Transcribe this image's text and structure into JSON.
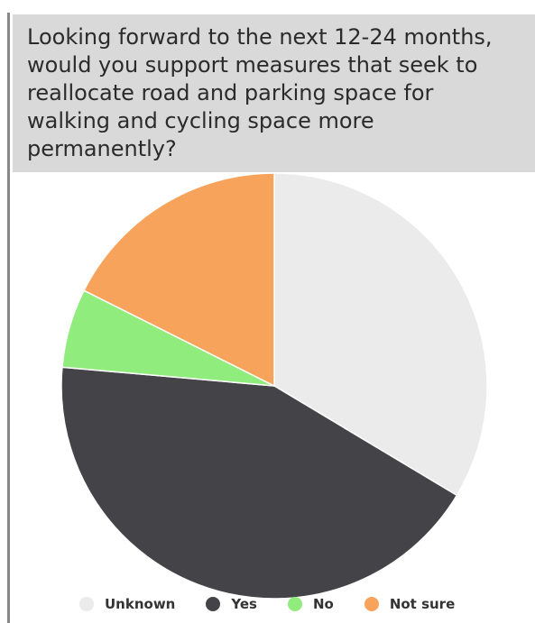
{
  "chart_data": {
    "type": "pie",
    "title": "Looking forward to the next 12-24 months, would you support measures that seek to reallocate road and parking space for walking and cycling space more permanently?",
    "slices": [
      {
        "label": "Unknown",
        "value": 33.6,
        "color": "#ebebeb"
      },
      {
        "label": "Yes",
        "value": 42.8,
        "color": "#434348"
      },
      {
        "label": "No",
        "value": 6.0,
        "color": "#90ed7d"
      },
      {
        "label": "Not sure",
        "value": 17.6,
        "color": "#f7a35c"
      }
    ],
    "start_angle_deg": 0,
    "direction": "clockwise",
    "legend_position": "bottom"
  },
  "colors": {
    "header_background": "#d9d9d9",
    "border": "#888888"
  }
}
